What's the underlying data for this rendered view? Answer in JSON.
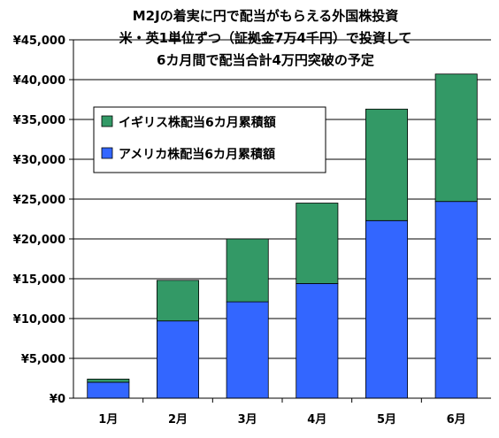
{
  "colors": {
    "uk": "#339966",
    "us": "#3366ff",
    "axis": "#000000",
    "grid": "#000000",
    "edge": "#000000"
  },
  "chart_data": {
    "type": "bar",
    "stacked": true,
    "title_lines": [
      "M2Jの着実に円で配当がもらえる外国株投資",
      "米・英1単位ずつ（証拠金7万4千円）で投資して",
      "6カ月間で配当合計4万円突破の予定"
    ],
    "categories": [
      "1月",
      "2月",
      "3月",
      "4月",
      "5月",
      "6月"
    ],
    "series": [
      {
        "name": "アメリカ株配当6カ月累積額",
        "values": [
          2000,
          9700,
          12100,
          14400,
          22300,
          24700
        ]
      },
      {
        "name": "イギリス株配当6カ月累積額",
        "values": [
          400,
          5100,
          7900,
          10100,
          14000,
          16000
        ]
      }
    ],
    "ylim": [
      0,
      45000
    ],
    "yticks": [
      "¥0",
      "¥5,000",
      "¥10,000",
      "¥15,000",
      "¥20,000",
      "¥25,000",
      "¥30,000",
      "¥35,000",
      "¥40,000",
      "¥45,000"
    ],
    "grid": true,
    "legend_position": "upper-left, inside plot",
    "legend_order": [
      "イギリス株配当6カ月累積額",
      "アメリカ株配当6カ月累積額"
    ]
  }
}
